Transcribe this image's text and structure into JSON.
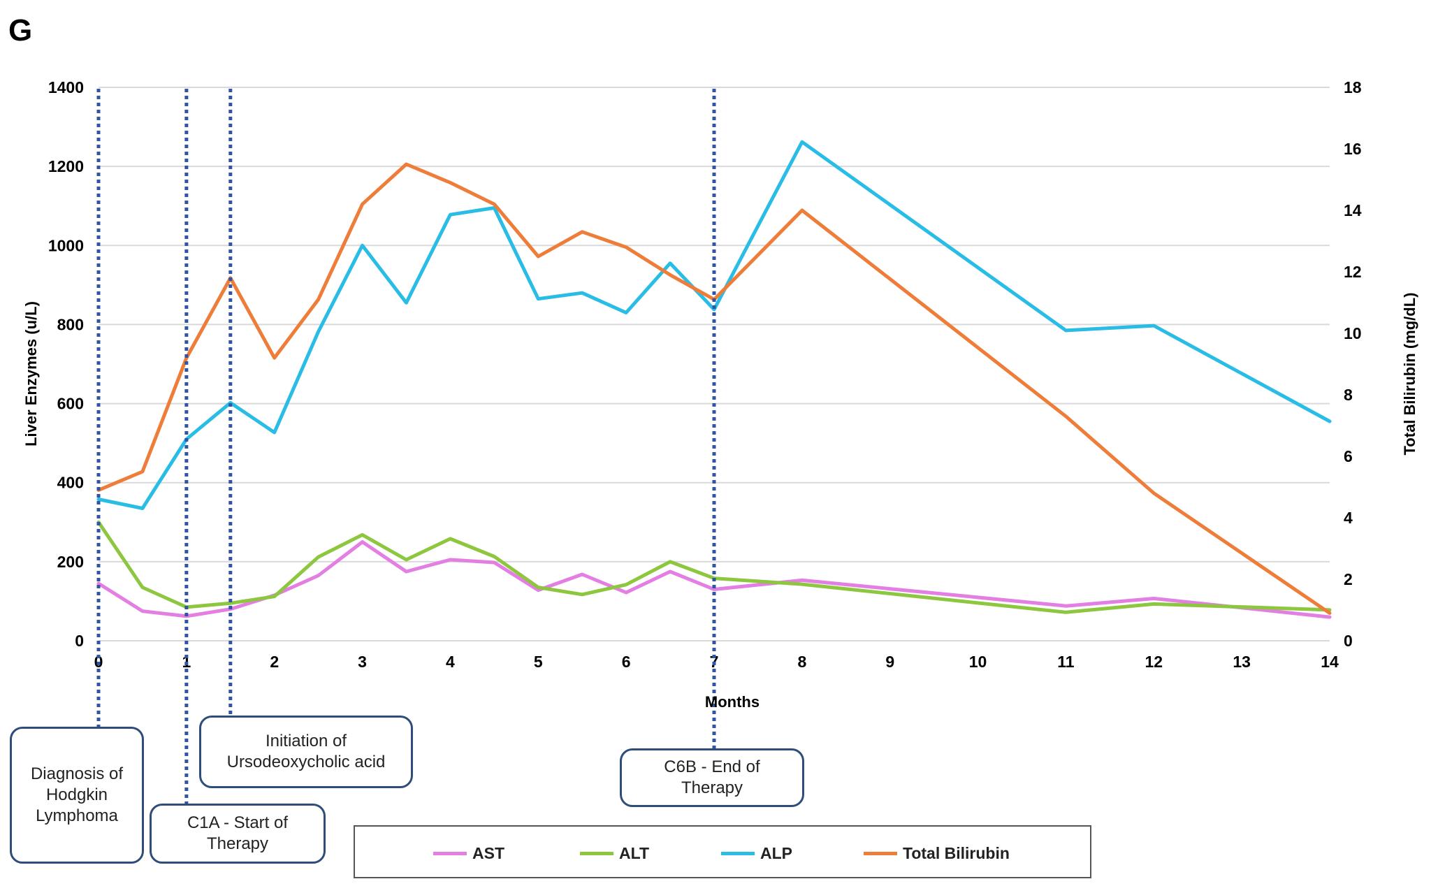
{
  "panel_label": "G",
  "chart_data": {
    "type": "line",
    "xlabel": "Months",
    "ylabel": "Liver Enzymes (u/L)",
    "y2label": "Total Bilirubin (mg/dL)",
    "xlim": [
      0,
      14
    ],
    "ylim": [
      0,
      1400
    ],
    "y2lim": [
      0,
      18
    ],
    "x_ticks": [
      0,
      1,
      2,
      3,
      4,
      5,
      6,
      7,
      8,
      9,
      10,
      11,
      12,
      13,
      14
    ],
    "y_ticks": [
      0,
      200,
      400,
      600,
      800,
      1000,
      1200,
      1400
    ],
    "y2_ticks": [
      0,
      2,
      4,
      6,
      8,
      10,
      12,
      14,
      16,
      18
    ],
    "grid": "horizontal",
    "legend_position": "bottom",
    "series": [
      {
        "name": "AST",
        "axis": "left",
        "color": "#e37ee3",
        "x": [
          0,
          0.5,
          1,
          1.5,
          2,
          2.5,
          3,
          3.5,
          4,
          4.5,
          5,
          5.5,
          6,
          6.5,
          7,
          8,
          11,
          12,
          14
        ],
        "values": [
          145,
          75,
          62,
          80,
          115,
          165,
          250,
          175,
          205,
          198,
          128,
          168,
          122,
          175,
          130,
          153,
          88,
          107,
          60
        ]
      },
      {
        "name": "ALT",
        "axis": "left",
        "color": "#8dc63f",
        "x": [
          0,
          0.5,
          1,
          1.5,
          2,
          2.5,
          3,
          3.5,
          4,
          4.5,
          5,
          5.5,
          6,
          6.5,
          7,
          8,
          11,
          12,
          14
        ],
        "values": [
          300,
          135,
          85,
          95,
          112,
          212,
          268,
          205,
          258,
          213,
          135,
          117,
          142,
          200,
          158,
          143,
          72,
          93,
          78
        ]
      },
      {
        "name": "ALP",
        "axis": "left",
        "color": "#29bde6",
        "x": [
          0,
          0.5,
          1,
          1.5,
          2,
          2.5,
          3,
          3.5,
          4,
          4.5,
          5,
          5.5,
          6,
          6.5,
          7,
          8,
          11,
          12,
          14
        ],
        "values": [
          358,
          335,
          510,
          602,
          527,
          782,
          1000,
          855,
          1078,
          1095,
          865,
          880,
          830,
          955,
          838,
          1262,
          785,
          797,
          555
        ]
      },
      {
        "name": "Total Bilirubin",
        "axis": "right",
        "color": "#ee7d3a",
        "x": [
          0,
          0.5,
          1,
          1.5,
          2,
          2.5,
          3,
          3.5,
          4,
          4.5,
          5,
          5.5,
          6,
          6.5,
          7,
          8,
          11,
          12,
          14
        ],
        "values": [
          4.9,
          5.5,
          9.2,
          11.8,
          9.2,
          11.1,
          14.2,
          15.5,
          14.9,
          14.2,
          12.5,
          13.3,
          12.8,
          11.9,
          11.1,
          14.0,
          7.3,
          4.8,
          0.9
        ]
      }
    ],
    "events": [
      {
        "x": 0,
        "label": "Diagnosis of\nHodgkin\nLymphoma"
      },
      {
        "x": 1,
        "label": "C1A - Start of\nTherapy"
      },
      {
        "x": 1.5,
        "label": "Initiation of\nUrsodeoxycholic acid"
      },
      {
        "x": 7,
        "label": "C6B - End of\nTherapy"
      }
    ],
    "event_line_color": "#2f55a4"
  }
}
